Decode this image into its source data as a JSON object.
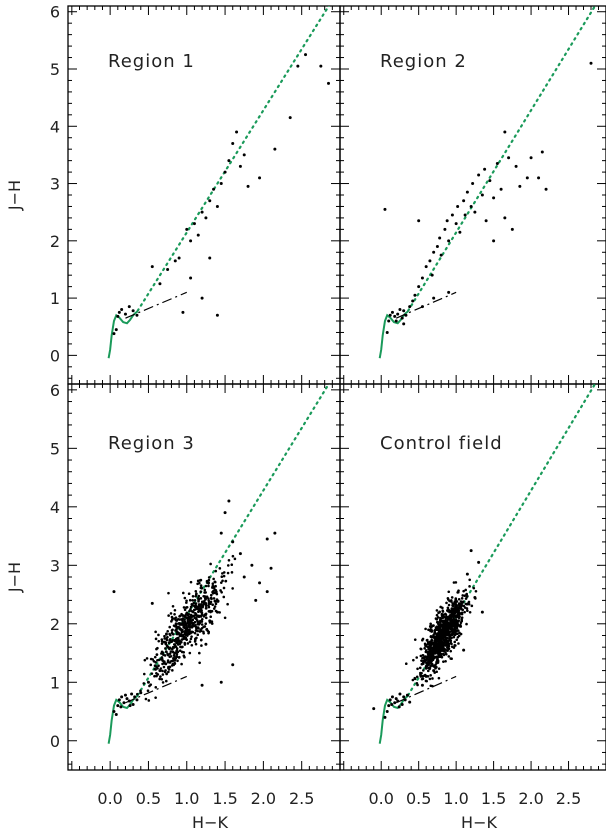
{
  "chart_data": {
    "type": "scatter",
    "xlabel": "H−K",
    "ylabel": "J−H",
    "xlim": [
      -0.55,
      3.0
    ],
    "ylim": [
      -0.5,
      6.1
    ],
    "xticks": [
      0.0,
      0.5,
      1.0,
      1.5,
      2.0,
      2.5
    ],
    "xtick_labels": [
      "0.0",
      "0.5",
      "1.0",
      "1.5",
      "2.0",
      "2.5"
    ],
    "yticks": [
      0,
      1,
      2,
      3,
      4,
      5,
      6
    ],
    "ytick_labels": [
      "0",
      "1",
      "2",
      "3",
      "4",
      "5",
      "6"
    ],
    "colors": {
      "locus": "#1a9a5a",
      "reddening": "#1a9a5a",
      "ctts": "#000000",
      "points": "#000000"
    },
    "reference_curves": {
      "main_sequence_locus": {
        "style": "solid green",
        "x": [
          -0.02,
          0.0,
          0.02,
          0.05,
          0.08,
          0.12,
          0.17,
          0.22,
          0.26,
          0.3,
          0.33,
          0.36
        ],
        "y": [
          -0.05,
          0.1,
          0.35,
          0.6,
          0.7,
          0.66,
          0.58,
          0.56,
          0.62,
          0.7,
          0.74,
          0.77
        ]
      },
      "reddening_vector": {
        "style": "dotted green",
        "x": [
          0.36,
          2.9
        ],
        "y": [
          0.78,
          6.2
        ]
      },
      "ctts_locus": {
        "style": "dashed black",
        "x": [
          0.2,
          1.0
        ],
        "y": [
          0.65,
          1.1
        ]
      }
    },
    "panels": [
      {
        "label": "Region 1",
        "points": [
          {
            "x": 0.1,
            "y": 0.68
          },
          {
            "x": 0.12,
            "y": 0.75
          },
          {
            "x": 0.15,
            "y": 0.8
          },
          {
            "x": 0.2,
            "y": 0.72
          },
          {
            "x": 0.25,
            "y": 0.85
          },
          {
            "x": 0.3,
            "y": 0.78
          },
          {
            "x": 0.35,
            "y": 0.7
          },
          {
            "x": 0.08,
            "y": 0.45
          },
          {
            "x": 0.05,
            "y": 0.38
          },
          {
            "x": 0.55,
            "y": 1.55
          },
          {
            "x": 0.75,
            "y": 1.5
          },
          {
            "x": 0.85,
            "y": 1.65
          },
          {
            "x": 0.9,
            "y": 1.7
          },
          {
            "x": 1.0,
            "y": 2.2
          },
          {
            "x": 1.05,
            "y": 2.0
          },
          {
            "x": 1.1,
            "y": 2.3
          },
          {
            "x": 1.15,
            "y": 2.1
          },
          {
            "x": 1.2,
            "y": 2.5
          },
          {
            "x": 1.25,
            "y": 2.4
          },
          {
            "x": 1.3,
            "y": 2.7
          },
          {
            "x": 1.35,
            "y": 2.9
          },
          {
            "x": 1.4,
            "y": 2.6
          },
          {
            "x": 1.45,
            "y": 3.0
          },
          {
            "x": 1.5,
            "y": 3.2
          },
          {
            "x": 1.55,
            "y": 3.4
          },
          {
            "x": 1.6,
            "y": 3.7
          },
          {
            "x": 1.65,
            "y": 3.9
          },
          {
            "x": 1.7,
            "y": 3.3
          },
          {
            "x": 1.75,
            "y": 3.5
          },
          {
            "x": 1.8,
            "y": 2.95
          },
          {
            "x": 1.95,
            "y": 3.1
          },
          {
            "x": 2.15,
            "y": 3.6
          },
          {
            "x": 2.35,
            "y": 4.15
          },
          {
            "x": 2.45,
            "y": 5.05
          },
          {
            "x": 2.55,
            "y": 5.25
          },
          {
            "x": 2.75,
            "y": 5.05
          },
          {
            "x": 2.85,
            "y": 4.75
          },
          {
            "x": 1.4,
            "y": 0.7
          },
          {
            "x": 1.2,
            "y": 1.0
          },
          {
            "x": 0.95,
            "y": 0.75
          },
          {
            "x": 0.65,
            "y": 1.25
          },
          {
            "x": 1.05,
            "y": 1.35
          },
          {
            "x": 1.3,
            "y": 1.7
          }
        ]
      },
      {
        "label": "Region 2",
        "points": [
          {
            "x": 0.08,
            "y": 0.4
          },
          {
            "x": 0.1,
            "y": 0.6
          },
          {
            "x": 0.12,
            "y": 0.7
          },
          {
            "x": 0.15,
            "y": 0.75
          },
          {
            "x": 0.18,
            "y": 0.68
          },
          {
            "x": 0.22,
            "y": 0.72
          },
          {
            "x": 0.25,
            "y": 0.8
          },
          {
            "x": 0.28,
            "y": 0.65
          },
          {
            "x": 0.3,
            "y": 0.78
          },
          {
            "x": 0.33,
            "y": 0.7
          },
          {
            "x": 0.38,
            "y": 0.85
          },
          {
            "x": 0.42,
            "y": 0.95
          },
          {
            "x": 0.45,
            "y": 1.05
          },
          {
            "x": 0.5,
            "y": 1.2
          },
          {
            "x": 0.55,
            "y": 1.35
          },
          {
            "x": 0.6,
            "y": 1.55
          },
          {
            "x": 0.65,
            "y": 1.65
          },
          {
            "x": 0.68,
            "y": 1.4
          },
          {
            "x": 0.7,
            "y": 1.8
          },
          {
            "x": 0.75,
            "y": 1.9
          },
          {
            "x": 0.78,
            "y": 2.05
          },
          {
            "x": 0.8,
            "y": 1.75
          },
          {
            "x": 0.85,
            "y": 2.2
          },
          {
            "x": 0.88,
            "y": 2.35
          },
          {
            "x": 0.9,
            "y": 2.0
          },
          {
            "x": 0.95,
            "y": 2.45
          },
          {
            "x": 1.0,
            "y": 2.3
          },
          {
            "x": 1.02,
            "y": 2.6
          },
          {
            "x": 1.05,
            "y": 2.15
          },
          {
            "x": 1.1,
            "y": 2.7
          },
          {
            "x": 1.12,
            "y": 2.45
          },
          {
            "x": 1.15,
            "y": 2.85
          },
          {
            "x": 1.2,
            "y": 2.6
          },
          {
            "x": 1.22,
            "y": 3.0
          },
          {
            "x": 1.25,
            "y": 2.5
          },
          {
            "x": 1.3,
            "y": 3.15
          },
          {
            "x": 1.35,
            "y": 2.8
          },
          {
            "x": 1.38,
            "y": 3.25
          },
          {
            "x": 1.4,
            "y": 2.35
          },
          {
            "x": 1.45,
            "y": 3.05
          },
          {
            "x": 1.5,
            "y": 2.75
          },
          {
            "x": 1.55,
            "y": 3.35
          },
          {
            "x": 1.6,
            "y": 2.9
          },
          {
            "x": 1.65,
            "y": 3.9
          },
          {
            "x": 1.7,
            "y": 3.45
          },
          {
            "x": 1.8,
            "y": 3.3
          },
          {
            "x": 1.85,
            "y": 2.95
          },
          {
            "x": 1.95,
            "y": 3.1
          },
          {
            "x": 2.0,
            "y": 3.45
          },
          {
            "x": 2.1,
            "y": 3.1
          },
          {
            "x": 2.15,
            "y": 3.55
          },
          {
            "x": 2.2,
            "y": 2.9
          },
          {
            "x": 1.65,
            "y": 2.4
          },
          {
            "x": 1.75,
            "y": 2.2
          },
          {
            "x": 1.5,
            "y": 2.0
          },
          {
            "x": 0.55,
            "y": 0.85
          },
          {
            "x": 0.7,
            "y": 1.0
          },
          {
            "x": 0.9,
            "y": 1.1
          },
          {
            "x": 0.05,
            "y": 2.55
          },
          {
            "x": 0.5,
            "y": 2.35
          },
          {
            "x": 2.8,
            "y": 5.1
          },
          {
            "x": 0.3,
            "y": 0.55
          },
          {
            "x": 0.2,
            "y": 0.6
          }
        ]
      },
      {
        "label": "Region 3",
        "cloud": {
          "count": 600,
          "center": [
            1.0,
            1.95
          ],
          "spread": [
            0.22,
            0.45
          ],
          "slope": 1.55
        },
        "points": [
          {
            "x": 0.08,
            "y": 0.45
          },
          {
            "x": 0.1,
            "y": 0.6
          },
          {
            "x": 0.12,
            "y": 0.7
          },
          {
            "x": 0.15,
            "y": 0.75
          },
          {
            "x": 0.18,
            "y": 0.65
          },
          {
            "x": 0.22,
            "y": 0.72
          },
          {
            "x": 0.25,
            "y": 0.68
          },
          {
            "x": 0.28,
            "y": 0.8
          },
          {
            "x": 0.3,
            "y": 0.62
          },
          {
            "x": 0.32,
            "y": 0.75
          },
          {
            "x": 0.35,
            "y": 0.7
          },
          {
            "x": 0.4,
            "y": 0.82
          },
          {
            "x": 0.05,
            "y": 0.5
          },
          {
            "x": 0.14,
            "y": 0.58
          },
          {
            "x": 0.2,
            "y": 0.78
          },
          {
            "x": 0.26,
            "y": 0.6
          },
          {
            "x": 0.05,
            "y": 2.55
          },
          {
            "x": 1.45,
            "y": 3.55
          },
          {
            "x": 1.5,
            "y": 3.9
          },
          {
            "x": 1.55,
            "y": 4.1
          },
          {
            "x": 1.6,
            "y": 3.4
          },
          {
            "x": 1.7,
            "y": 3.2
          },
          {
            "x": 1.75,
            "y": 2.8
          },
          {
            "x": 1.85,
            "y": 3.0
          },
          {
            "x": 1.95,
            "y": 2.7
          },
          {
            "x": 2.05,
            "y": 3.45
          },
          {
            "x": 2.1,
            "y": 2.95
          },
          {
            "x": 2.15,
            "y": 3.55
          },
          {
            "x": 2.05,
            "y": 2.55
          },
          {
            "x": 1.9,
            "y": 2.4
          },
          {
            "x": 1.6,
            "y": 1.3
          },
          {
            "x": 1.45,
            "y": 1.0
          },
          {
            "x": 1.2,
            "y": 0.95
          },
          {
            "x": 0.55,
            "y": 2.35
          },
          {
            "x": 1.3,
            "y": 2.05
          },
          {
            "x": 1.4,
            "y": 2.2
          },
          {
            "x": 1.25,
            "y": 1.65
          },
          {
            "x": 0.65,
            "y": 1.2
          },
          {
            "x": 0.5,
            "y": 1.0
          }
        ]
      },
      {
        "label": "Control field",
        "cloud": {
          "count": 900,
          "center": [
            0.82,
            1.8
          ],
          "spread": [
            0.15,
            0.38
          ],
          "slope": 1.7
        },
        "points": [
          {
            "x": 0.1,
            "y": 0.6
          },
          {
            "x": 0.12,
            "y": 0.7
          },
          {
            "x": 0.15,
            "y": 0.75
          },
          {
            "x": 0.18,
            "y": 0.65
          },
          {
            "x": 0.2,
            "y": 0.72
          },
          {
            "x": 0.22,
            "y": 0.68
          },
          {
            "x": 0.25,
            "y": 0.8
          },
          {
            "x": 0.28,
            "y": 0.62
          },
          {
            "x": 0.3,
            "y": 0.75
          },
          {
            "x": 0.32,
            "y": 0.7
          },
          {
            "x": 0.35,
            "y": 0.78
          },
          {
            "x": 0.08,
            "y": 0.5
          },
          {
            "x": 0.14,
            "y": 0.62
          },
          {
            "x": 0.24,
            "y": 0.58
          },
          {
            "x": 0.38,
            "y": 0.66
          },
          {
            "x": 0.05,
            "y": 0.4
          },
          {
            "x": -0.1,
            "y": 0.55
          },
          {
            "x": 1.2,
            "y": 3.25
          },
          {
            "x": 1.3,
            "y": 3.05
          },
          {
            "x": 1.15,
            "y": 2.85
          },
          {
            "x": 1.25,
            "y": 2.45
          },
          {
            "x": 1.35,
            "y": 2.2
          },
          {
            "x": 1.1,
            "y": 1.55
          },
          {
            "x": 0.55,
            "y": 0.95
          },
          {
            "x": 0.6,
            "y": 1.1
          },
          {
            "x": 0.7,
            "y": 1.2
          }
        ]
      }
    ]
  }
}
